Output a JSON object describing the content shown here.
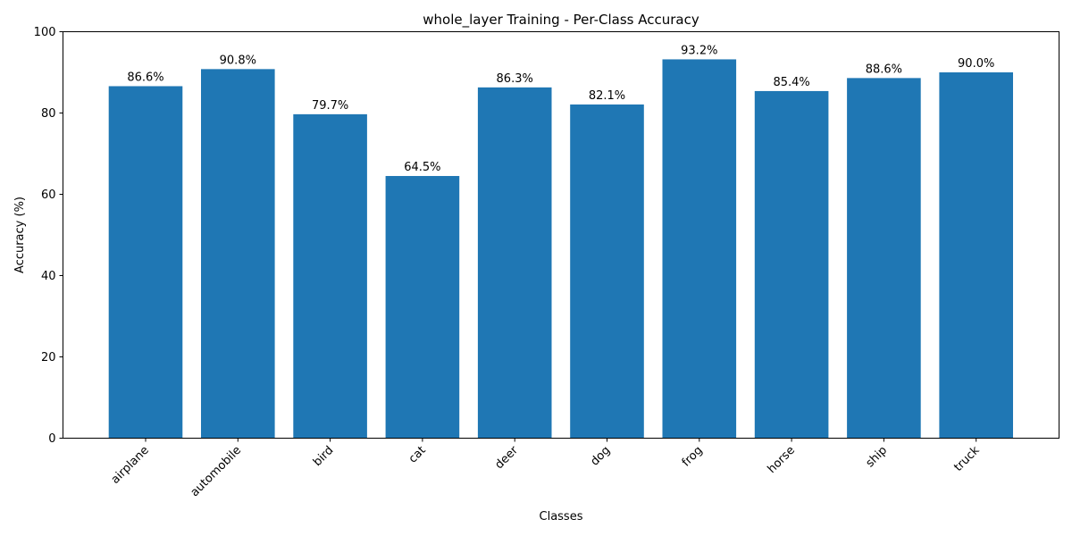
{
  "chart_data": {
    "type": "bar",
    "title": "whole_layer Training - Per-Class Accuracy",
    "xlabel": "Classes",
    "ylabel": "Accuracy (%)",
    "categories": [
      "airplane",
      "automobile",
      "bird",
      "cat",
      "deer",
      "dog",
      "frog",
      "horse",
      "ship",
      "truck"
    ],
    "values": [
      86.6,
      90.8,
      79.7,
      64.5,
      86.3,
      82.1,
      93.2,
      85.4,
      88.6,
      90.0
    ],
    "data_labels": [
      "86.6%",
      "90.8%",
      "79.7%",
      "64.5%",
      "86.3%",
      "82.1%",
      "93.2%",
      "85.4%",
      "88.6%",
      "90.0%"
    ],
    "ylim": [
      0,
      100
    ],
    "yticks": [
      0,
      20,
      40,
      60,
      80,
      100
    ],
    "bar_color": "#1f77b4",
    "grid": false,
    "legend": "none"
  }
}
